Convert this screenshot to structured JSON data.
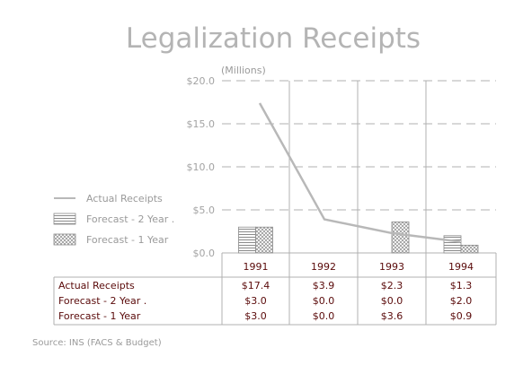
{
  "title": "Legalization Receipts",
  "unit_label": "(Millions)",
  "source": "Source: INS (FACS & Budget)",
  "colors": {
    "line": "#b8b8b8",
    "grid": "#b0b0b0",
    "table_text": "#5a0a0a",
    "axis_text": "#a3a3a3",
    "title": "#b4b4b4"
  },
  "chart_data": {
    "type": "bar",
    "categories": [
      "1991",
      "1992",
      "1993",
      "1994"
    ],
    "ylim": [
      0,
      20
    ],
    "y_ticks": [
      "$0.0",
      "$5.0",
      "$10.0",
      "$15.0",
      "$20.0"
    ],
    "grid": true,
    "legend_position": "left",
    "series": [
      {
        "name": "Actual Receipts",
        "kind": "line",
        "values": [
          17.4,
          3.9,
          2.3,
          1.3
        ],
        "labels": [
          "$17.4",
          "$3.9",
          "$2.3",
          "$1.3"
        ]
      },
      {
        "name": "Forecast - 2 Year .",
        "kind": "bar",
        "pattern": "horizontal-lines",
        "values": [
          3.0,
          0.0,
          0.0,
          2.0
        ],
        "labels": [
          "$3.0",
          "$0.0",
          "$0.0",
          "$2.0"
        ]
      },
      {
        "name": "Forecast - 1 Year",
        "kind": "bar",
        "pattern": "crosshatch",
        "values": [
          3.0,
          0.0,
          3.6,
          0.9
        ],
        "labels": [
          "$3.0",
          "$0.0",
          "$3.6",
          "$0.9"
        ]
      }
    ]
  }
}
